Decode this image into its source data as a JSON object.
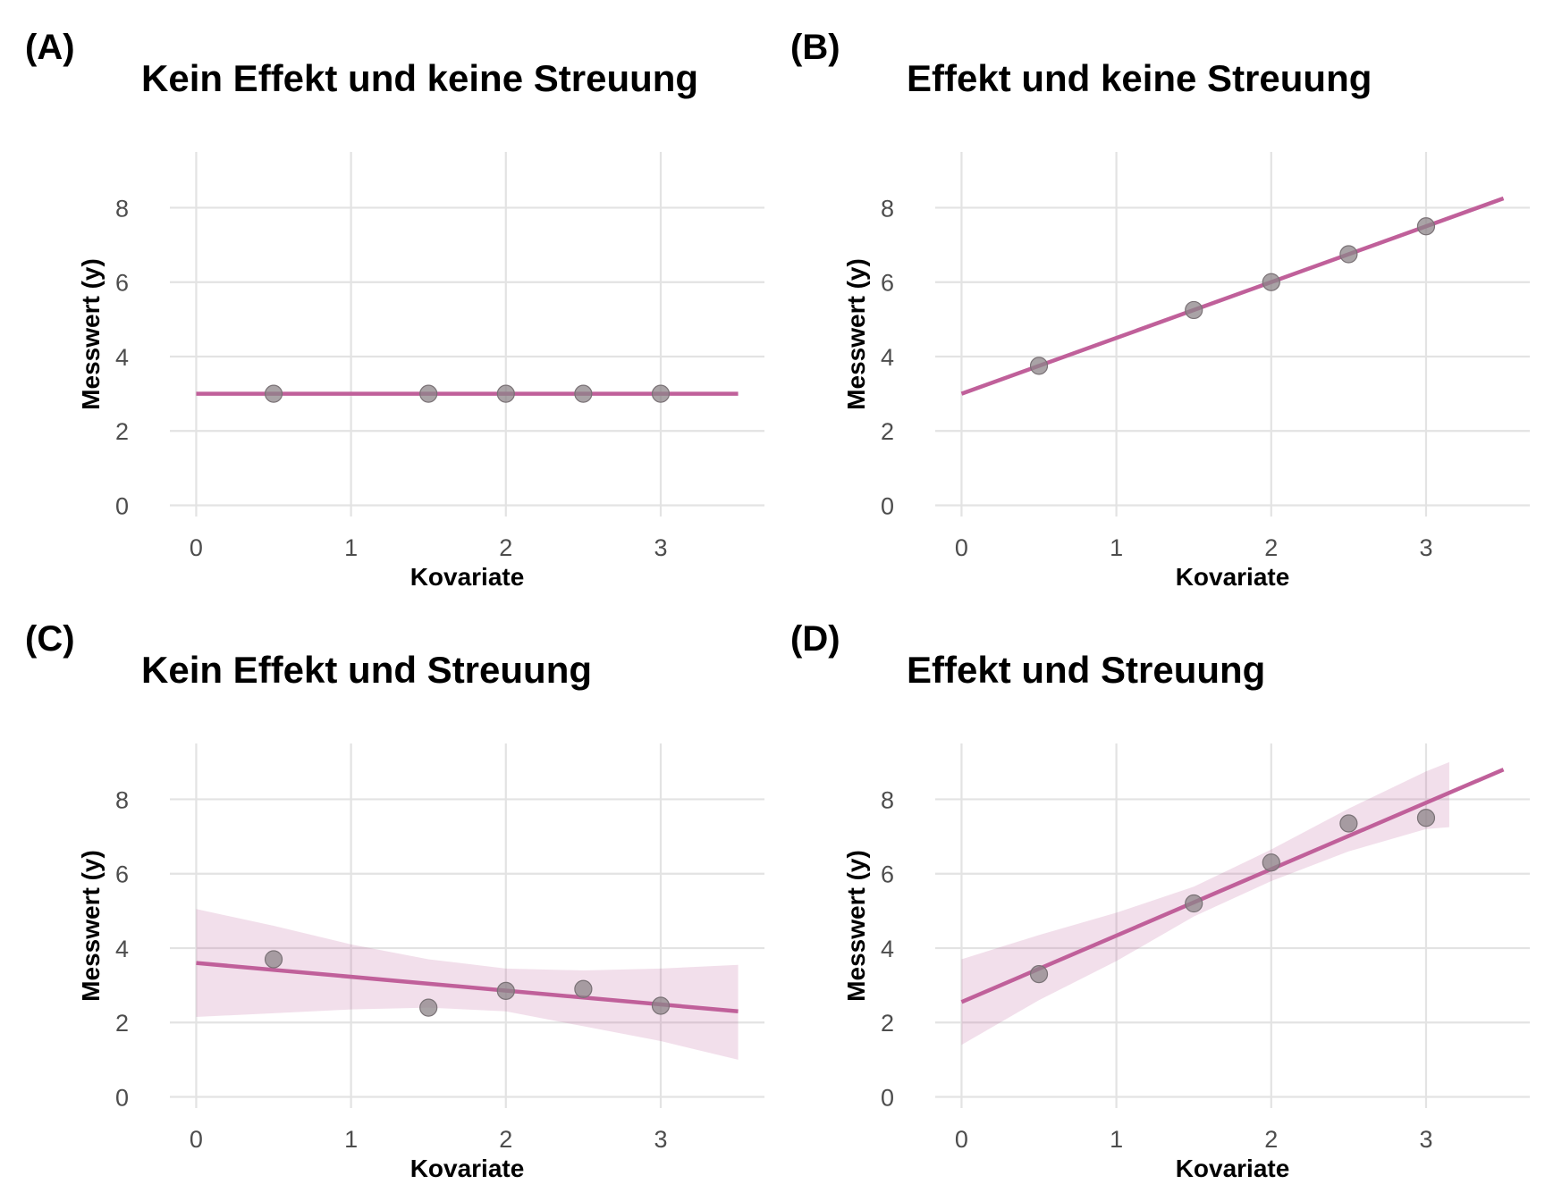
{
  "colors": {
    "line": "#c0609a",
    "band": "#c0609a",
    "point": "#8c8488",
    "grid": "#e3e3e3"
  },
  "chart_data": [
    {
      "type": "scatter",
      "tag": "(A)",
      "title": "Kein Effekt und keine Streuung",
      "xlabel": "Kovariate",
      "ylabel": "Messwert (y)",
      "xlim": [
        -0.17,
        3.67
      ],
      "ylim": [
        -0.3,
        9.5
      ],
      "xticks": [
        0,
        1,
        2,
        3
      ],
      "yticks": [
        0,
        2,
        4,
        6,
        8
      ],
      "grid": true,
      "x": [
        0.5,
        1.5,
        2.0,
        2.5,
        3.0
      ],
      "y": [
        3.0,
        3.0,
        3.0,
        3.0,
        3.0
      ],
      "fit": {
        "x": [
          0,
          3.5
        ],
        "y": [
          3.0,
          3.0
        ]
      },
      "band": null
    },
    {
      "type": "scatter",
      "tag": "(B)",
      "title": "Effekt und keine Streuung",
      "xlabel": "Kovariate",
      "ylabel": "Messwert (y)",
      "xlim": [
        -0.17,
        3.67
      ],
      "ylim": [
        -0.3,
        9.5
      ],
      "xticks": [
        0,
        1,
        2,
        3
      ],
      "yticks": [
        0,
        2,
        4,
        6,
        8
      ],
      "grid": true,
      "x": [
        0.5,
        1.5,
        2.0,
        2.5,
        3.0
      ],
      "y": [
        3.75,
        5.25,
        6.0,
        6.75,
        7.5
      ],
      "fit": {
        "x": [
          0,
          3.5
        ],
        "y": [
          3.0,
          8.25
        ]
      },
      "band": null
    },
    {
      "type": "scatter",
      "tag": "(C)",
      "title": "Kein Effekt und Streuung",
      "xlabel": "Kovariate",
      "ylabel": "Messwert (y)",
      "xlim": [
        -0.17,
        3.67
      ],
      "ylim": [
        -0.3,
        9.5
      ],
      "xticks": [
        0,
        1,
        2,
        3
      ],
      "yticks": [
        0,
        2,
        4,
        6,
        8
      ],
      "grid": true,
      "x": [
        0.5,
        1.5,
        2.0,
        2.5,
        3.0
      ],
      "y": [
        3.7,
        2.4,
        2.85,
        2.9,
        2.45
      ],
      "fit": {
        "x": [
          0,
          3.5
        ],
        "y": [
          3.6,
          2.3
        ]
      },
      "band": {
        "x": [
          0,
          0.5,
          1.0,
          1.5,
          2.0,
          2.5,
          3.0,
          3.5
        ],
        "lower": [
          2.15,
          2.25,
          2.35,
          2.4,
          2.3,
          1.9,
          1.5,
          1.0
        ],
        "upper": [
          5.05,
          4.6,
          4.1,
          3.7,
          3.45,
          3.4,
          3.45,
          3.55
        ]
      }
    },
    {
      "type": "scatter",
      "tag": "(D)",
      "title": "Effekt und Streuung",
      "xlabel": "Kovariate",
      "ylabel": "Messwert (y)",
      "xlim": [
        -0.17,
        3.67
      ],
      "ylim": [
        -0.3,
        9.5
      ],
      "xticks": [
        0,
        1,
        2,
        3
      ],
      "yticks": [
        0,
        2,
        4,
        6,
        8
      ],
      "grid": true,
      "x": [
        0.5,
        1.5,
        2.0,
        2.5,
        3.0
      ],
      "y": [
        3.3,
        5.2,
        6.3,
        7.35,
        7.5
      ],
      "fit": {
        "x": [
          0,
          3.5
        ],
        "y": [
          2.55,
          8.8
        ]
      },
      "band": {
        "x": [
          0,
          0.5,
          1.0,
          1.5,
          2.0,
          2.5,
          3.0,
          3.15
        ],
        "lower": [
          1.4,
          2.6,
          3.65,
          4.85,
          5.8,
          6.6,
          7.2,
          7.25
        ],
        "upper": [
          3.7,
          4.35,
          4.95,
          5.65,
          6.65,
          7.75,
          8.75,
          9.0
        ]
      }
    }
  ]
}
